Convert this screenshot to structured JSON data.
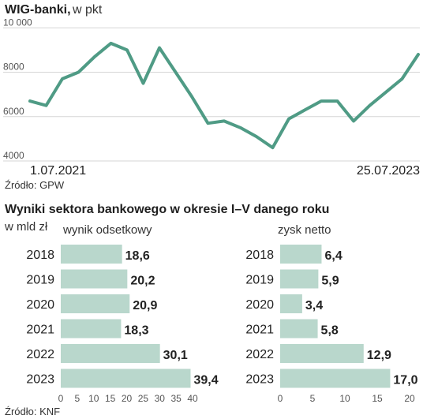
{
  "line_chart": {
    "title": "WIG-banki,",
    "subtitle": "w pkt",
    "y_ticks": [
      "10 000",
      "8000",
      "6000",
      "4000"
    ],
    "start_date": "1.07.2021",
    "end_date": "25.07.2023",
    "source": "Źródło: GPW"
  },
  "bar_section": {
    "title": "Wyniki sektora bankowego w okresie I–V danego roku",
    "unit": "w mld zł",
    "source": "Źródło: KNF"
  },
  "chart_data": [
    {
      "type": "line",
      "title": "WIG-banki, w pkt",
      "ylim": [
        4000,
        10400
      ],
      "y_ticks": [
        10000,
        8000,
        6000,
        4000
      ],
      "line_color": "#4f9b85",
      "x": [
        "2021-07",
        "2021-08",
        "2021-09",
        "2021-10",
        "2021-11",
        "2021-12",
        "2022-01",
        "2022-02",
        "2022-03",
        "2022-04",
        "2022-05",
        "2022-06",
        "2022-07",
        "2022-08",
        "2022-09",
        "2022-10",
        "2022-11",
        "2022-12",
        "2023-01",
        "2023-02",
        "2023-03",
        "2023-04",
        "2023-05",
        "2023-06",
        "2023-07"
      ],
      "y": [
        6700,
        6500,
        7700,
        8000,
        8700,
        9300,
        9000,
        7500,
        9100,
        8000,
        6900,
        5700,
        5800,
        5500,
        5100,
        4600,
        5900,
        6300,
        6700,
        6700,
        5800,
        6500,
        7100,
        7700,
        8800
      ]
    },
    {
      "type": "bar",
      "title": "wynik odsetkowy",
      "categories": [
        "2018",
        "2019",
        "2020",
        "2021",
        "2022",
        "2023"
      ],
      "values": [
        18.6,
        20.2,
        20.9,
        18.3,
        30.1,
        39.4
      ],
      "value_labels": [
        "18,6",
        "20,2",
        "20,9",
        "18,3",
        "30,1",
        "39,4"
      ],
      "xlim": [
        0,
        40
      ],
      "x_ticks": [
        0,
        5,
        10,
        15,
        20,
        25,
        30,
        35,
        40
      ],
      "bar_color": "#b9d7cc"
    },
    {
      "type": "bar",
      "title": "zysk netto",
      "categories": [
        "2018",
        "2019",
        "2020",
        "2021",
        "2022",
        "2023"
      ],
      "values": [
        6.4,
        5.9,
        3.4,
        5.8,
        12.9,
        17.0
      ],
      "value_labels": [
        "6,4",
        "5,9",
        "3,4",
        "5,8",
        "12,9",
        "17,0"
      ],
      "xlim": [
        0,
        20
      ],
      "x_ticks": [
        0,
        5,
        10,
        15,
        20
      ],
      "bar_color": "#b9d7cc"
    }
  ]
}
